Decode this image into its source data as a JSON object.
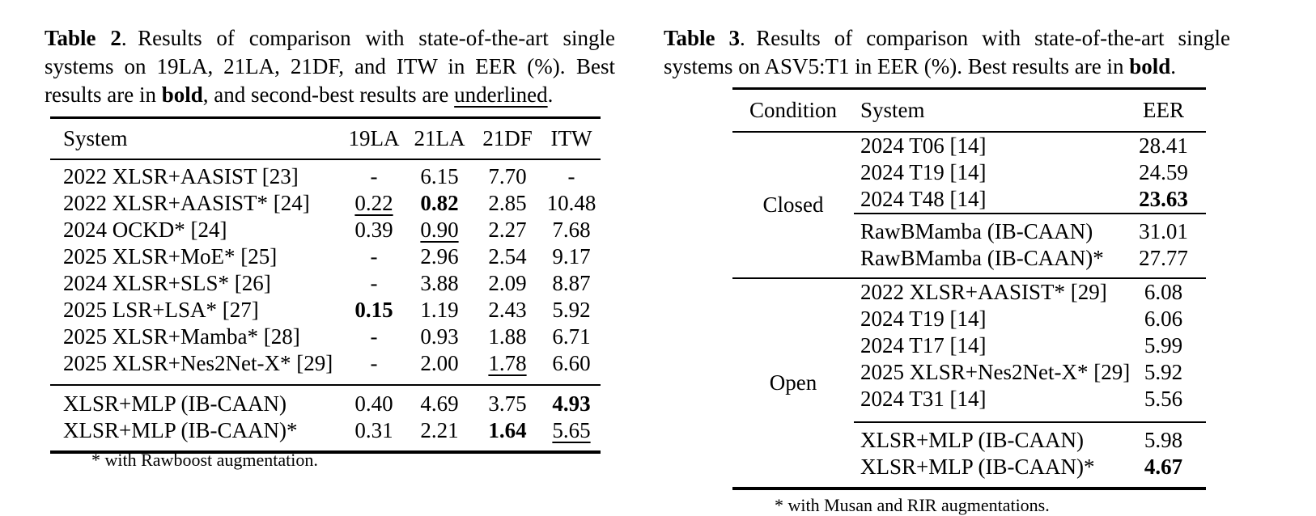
{
  "page": {
    "background": "#ffffff",
    "text_color": "#000000"
  },
  "table2": {
    "caption_segments": [
      {
        "text": "Table 2",
        "bold": true
      },
      {
        "text": ". Results of comparison with state-of-the-art single systems on 19LA, 21LA, 21DF, and ITW in EER (%). Best results are in "
      },
      {
        "text": "bold",
        "bold": true
      },
      {
        "text": ", and second-best results are "
      },
      {
        "text": "underlined",
        "underline": true
      },
      {
        "text": "."
      }
    ],
    "columns": [
      "System",
      "19LA",
      "21LA",
      "21DF",
      "ITW"
    ],
    "groups": [
      {
        "rows": [
          {
            "system": "2022 XLSR+AASIST [23]",
            "cells": [
              {
                "v": "-"
              },
              {
                "v": "6.15"
              },
              {
                "v": "7.70"
              },
              {
                "v": "-"
              }
            ]
          },
          {
            "system": "2022 XLSR+AASIST* [24]",
            "cells": [
              {
                "v": "0.22",
                "u": true
              },
              {
                "v": "0.82",
                "b": true
              },
              {
                "v": "2.85"
              },
              {
                "v": "10.48"
              }
            ]
          },
          {
            "system": "2024 OCKD* [24]",
            "cells": [
              {
                "v": "0.39"
              },
              {
                "v": "0.90",
                "u": true
              },
              {
                "v": "2.27"
              },
              {
                "v": "7.68"
              }
            ]
          },
          {
            "system": "2025 XLSR+MoE* [25]",
            "cells": [
              {
                "v": "-"
              },
              {
                "v": "2.96"
              },
              {
                "v": "2.54"
              },
              {
                "v": "9.17"
              }
            ]
          },
          {
            "system": "2024 XLSR+SLS* [26]",
            "cells": [
              {
                "v": "-"
              },
              {
                "v": "3.88"
              },
              {
                "v": "2.09"
              },
              {
                "v": "8.87"
              }
            ]
          },
          {
            "system": "2025 LSR+LSA* [27]",
            "cells": [
              {
                "v": "0.15",
                "b": true
              },
              {
                "v": "1.19"
              },
              {
                "v": "2.43"
              },
              {
                "v": "5.92"
              }
            ]
          },
          {
            "system": "2025 XLSR+Mamba* [28]",
            "cells": [
              {
                "v": "-"
              },
              {
                "v": "0.93"
              },
              {
                "v": "1.88"
              },
              {
                "v": "6.71"
              }
            ]
          },
          {
            "system": "2025 XLSR+Nes2Net-X* [29]",
            "cells": [
              {
                "v": "-"
              },
              {
                "v": "2.00"
              },
              {
                "v": "1.78",
                "u": true
              },
              {
                "v": "6.60"
              }
            ]
          }
        ]
      },
      {
        "rows": [
          {
            "system": "XLSR+MLP (IB-CAAN)",
            "cells": [
              {
                "v": "0.40"
              },
              {
                "v": "4.69"
              },
              {
                "v": "3.75"
              },
              {
                "v": "4.93",
                "b": true
              }
            ]
          },
          {
            "system": "XLSR+MLP (IB-CAAN)*",
            "cells": [
              {
                "v": "0.31"
              },
              {
                "v": "2.21"
              },
              {
                "v": "1.64",
                "b": true
              },
              {
                "v": "5.65",
                "u": true
              }
            ]
          }
        ]
      }
    ],
    "footnote": "* with Rawboost augmentation."
  },
  "table3": {
    "caption_segments": [
      {
        "text": "Table 3",
        "bold": true
      },
      {
        "text": ". Results of comparison with state-of-the-art single systems on ASV5:T1 in EER (%). Best results are in "
      },
      {
        "text": "bold",
        "bold": true
      },
      {
        "text": "."
      }
    ],
    "columns": [
      "Condition",
      "System",
      "EER"
    ],
    "groups": [
      {
        "condition": "Closed",
        "subgroups": [
          [
            {
              "system": "2024 T06 [14]",
              "eer": {
                "v": "28.41"
              }
            },
            {
              "system": "2024 T19 [14]",
              "eer": {
                "v": "24.59"
              }
            },
            {
              "system": "2024 T48 [14]",
              "eer": {
                "v": "23.63",
                "b": true
              }
            }
          ],
          [
            {
              "system": "RawBMamba (IB-CAAN)",
              "eer": {
                "v": "31.01"
              }
            },
            {
              "system": "RawBMamba (IB-CAAN)*",
              "eer": {
                "v": "27.77"
              }
            }
          ]
        ]
      },
      {
        "condition": "Open",
        "subgroups": [
          [
            {
              "system": "2022 XLSR+AASIST* [29]",
              "eer": {
                "v": "6.08"
              }
            },
            {
              "system": "2024 T19 [14]",
              "eer": {
                "v": "6.06"
              }
            },
            {
              "system": "2024 T17 [14]",
              "eer": {
                "v": "5.99"
              }
            },
            {
              "system": "2025 XLSR+Nes2Net-X* [29]",
              "eer": {
                "v": "5.92"
              }
            },
            {
              "system": "2024 T31 [14]",
              "eer": {
                "v": "5.56"
              }
            }
          ],
          [
            {
              "system": "XLSR+MLP (IB-CAAN)",
              "eer": {
                "v": "5.98"
              }
            },
            {
              "system": "XLSR+MLP (IB-CAAN)*",
              "eer": {
                "v": "4.67",
                "b": true
              }
            }
          ]
        ]
      }
    ],
    "footnote": "* with Musan and RIR augmentations."
  }
}
